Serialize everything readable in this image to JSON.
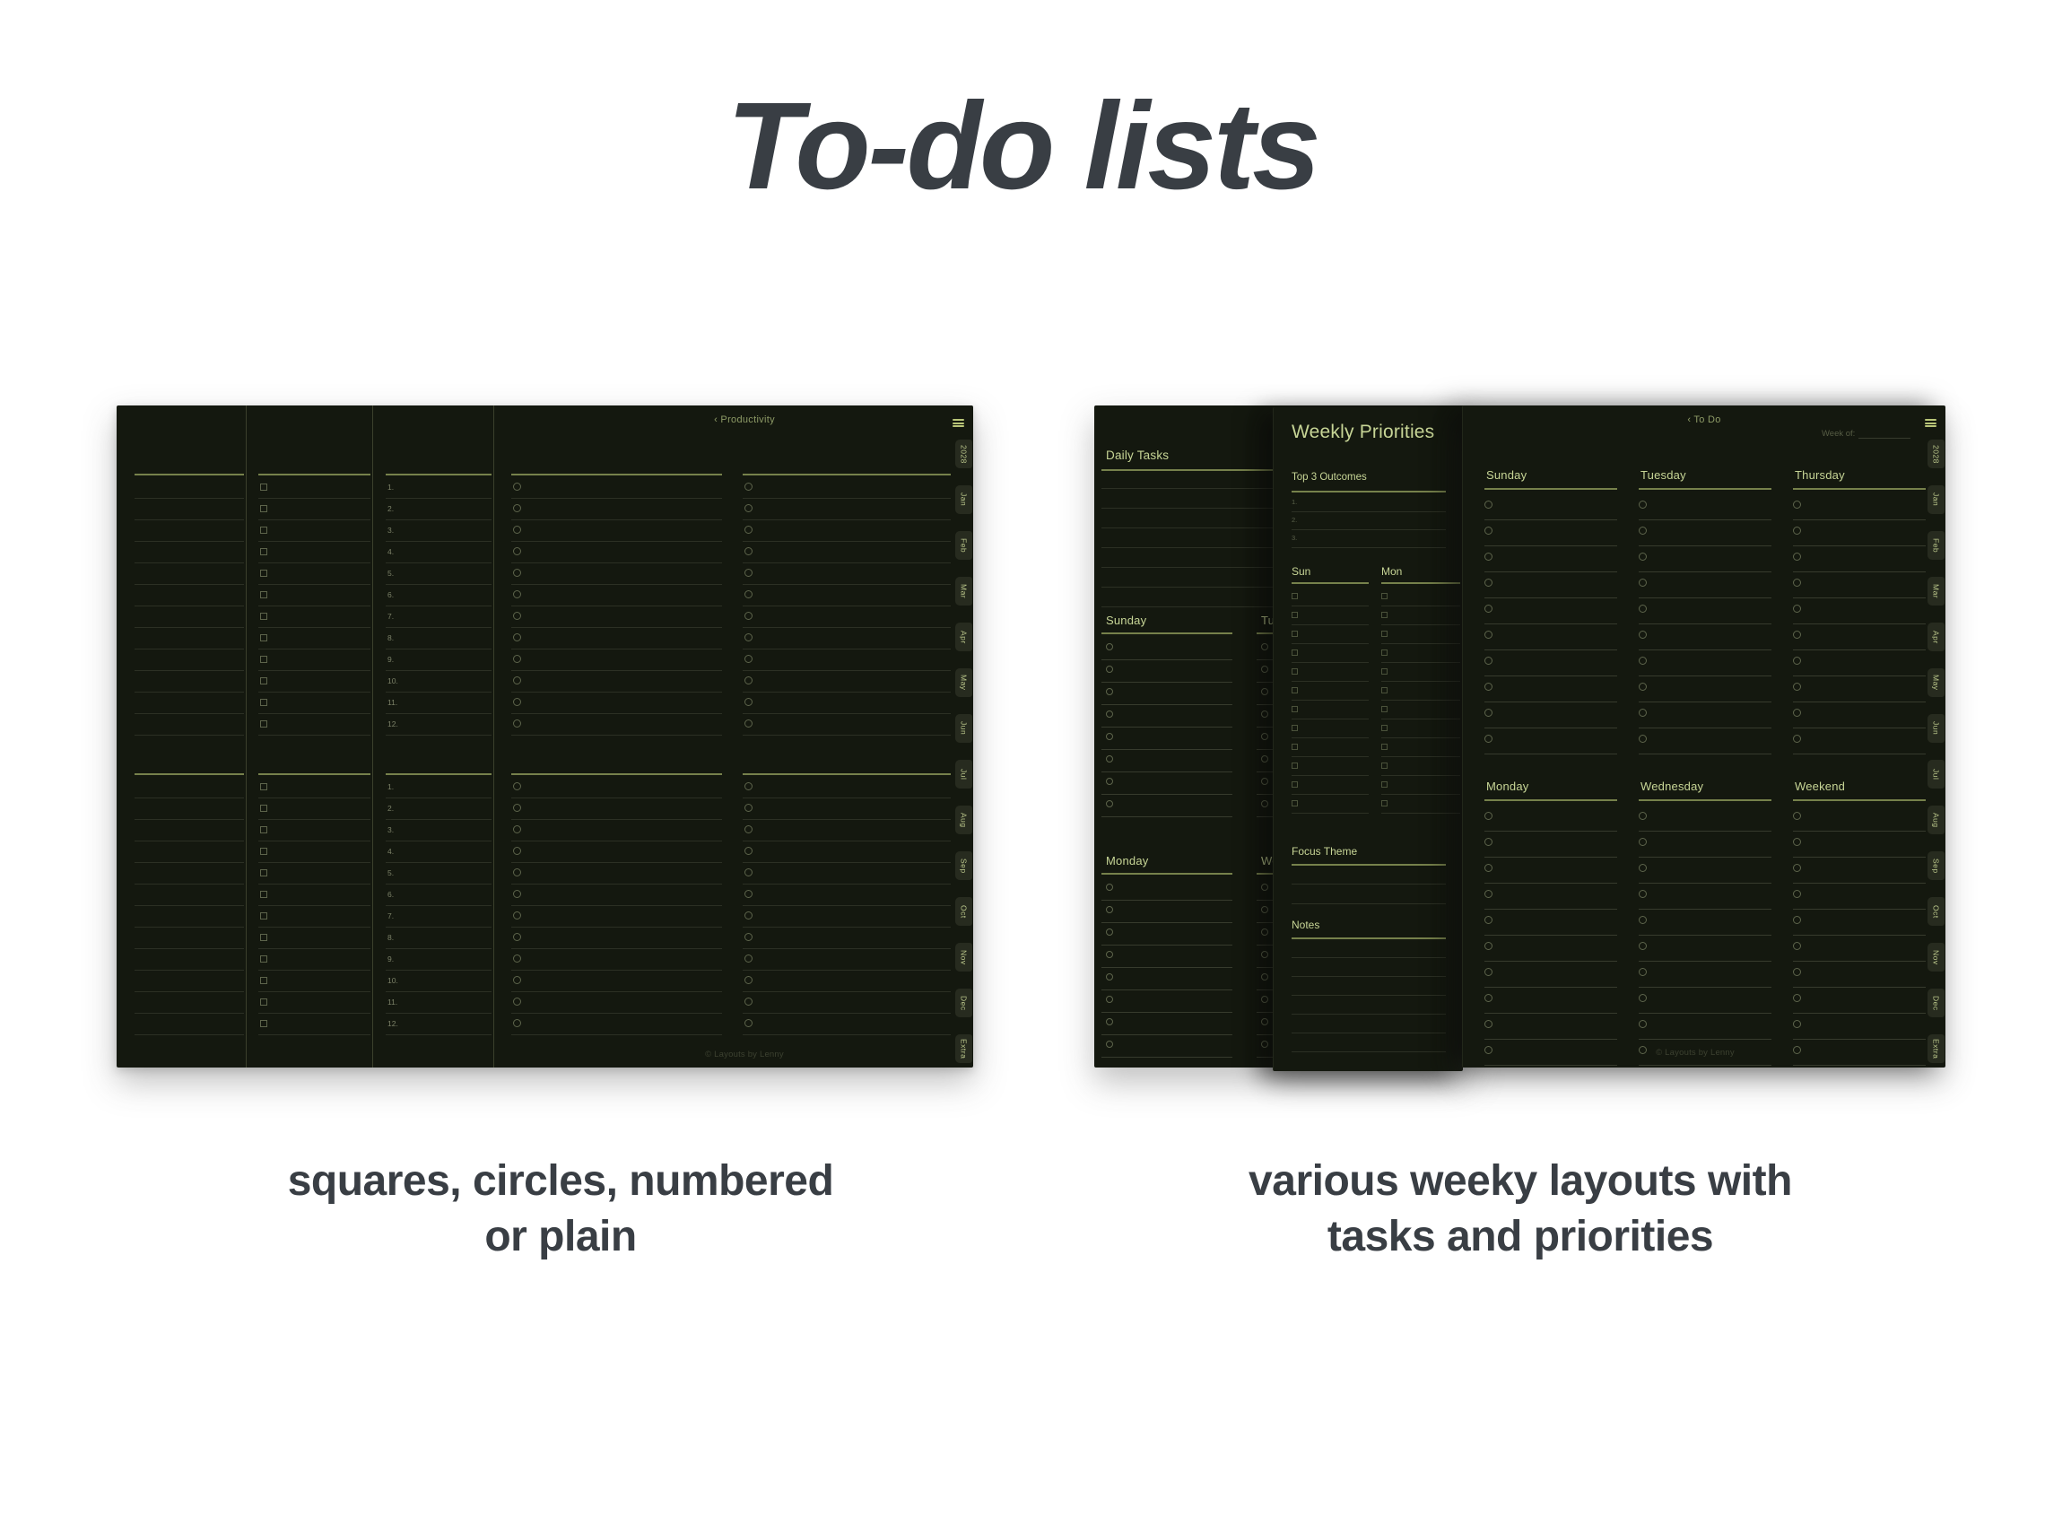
{
  "title": "To-do lists",
  "captions": {
    "left_line1": "squares, circles, numbered",
    "left_line2": "or plain",
    "right_line1": "various weeky layouts with",
    "right_line2": "tasks and priorities"
  },
  "tabs": [
    "2028",
    "Jan",
    "Feb",
    "Mar",
    "Apr",
    "May",
    "Jun",
    "Jul",
    "Aug",
    "Sep",
    "Oct",
    "Nov",
    "Dec",
    "Extra"
  ],
  "left_planner": {
    "back_label": "‹ Productivity",
    "footer": "© Layouts by Lenny",
    "column_styles": [
      "plain",
      "square",
      "number",
      "circle",
      "circle"
    ],
    "rows_per_section": 12,
    "row_numbers": [
      "1.",
      "2.",
      "3.",
      "4.",
      "5.",
      "6.",
      "7.",
      "8.",
      "9.",
      "10.",
      "11.",
      "12."
    ]
  },
  "right_planner": {
    "back_label": "‹ To Do",
    "week_of_label": "Week of:",
    "footer": "© Layouts by Lenny",
    "daily_tasks": {
      "title": "Daily Tasks",
      "free_lines": 7,
      "sections": [
        {
          "columns": [
            "Sunday",
            "Tuesday"
          ],
          "rows": 8
        },
        {
          "columns": [
            "Monday",
            "Wednesday"
          ],
          "rows": 8
        }
      ]
    },
    "weekly_priorities": {
      "title": "Weekly Priorities",
      "outcomes_label": "Top 3 Outcomes",
      "outcome_numbers": [
        "1.",
        "2.",
        "3."
      ],
      "day_columns": [
        "Sun",
        "Mon"
      ],
      "checkbox_rows": 12,
      "focus_label": "Focus Theme",
      "notes_label": "Notes"
    },
    "weekly_todo": {
      "header_rows": [
        [
          "Sunday",
          "Tuesday",
          "Thursday"
        ],
        [
          "Monday",
          "Wednesday",
          "Weekend"
        ]
      ],
      "rows_per_column": 10
    }
  },
  "colors": {
    "accent_text": "#c7d596",
    "bright_line": "#76814b",
    "dim_line": "#2c3024",
    "mid_line": "#373b2d",
    "shape": "#5d644b",
    "shape_dim": "#4a513a",
    "number_text": "#7c8268",
    "number_dim": "#5a604a",
    "back_link": "#8d9a66",
    "week_of_text": "#565c44",
    "footer_text": "#3c4130",
    "page_bg": "#14180f",
    "tab_bg": "#272b1f",
    "tab_text": "#bcc88c",
    "hamburger": "#b9c578",
    "divider": "#3b402c",
    "heading": "#393e44"
  }
}
